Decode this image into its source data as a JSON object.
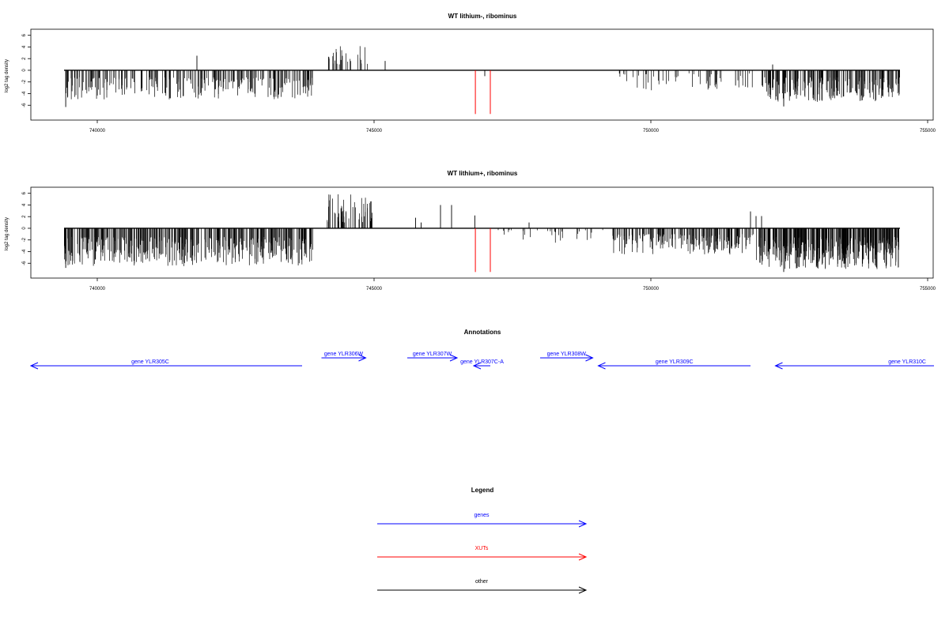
{
  "chart_data": [
    {
      "type": "bar",
      "title": "WT lithium-, ribominus",
      "ylabel": "log2 tag density",
      "xlim": [
        738800,
        755100
      ],
      "ylim": [
        -8,
        6.5
      ],
      "x_ticks": [
        "740000",
        "745000",
        "750000",
        "755000"
      ],
      "y_ticks": [
        "6",
        "4",
        "2",
        "0",
        "-2",
        "-4",
        "-6"
      ],
      "baseline": {
        "x_start": 739400,
        "x_end": 754500,
        "y": 0
      },
      "regions": [
        {
          "x_start": 739400,
          "x_end": 743900,
          "sign": -1,
          "min": 1.2,
          "max": 5.0,
          "density": 250
        },
        {
          "x_start": 744150,
          "x_end": 744900,
          "sign": 1,
          "min": 1.0,
          "max": 4.2,
          "density": 26
        },
        {
          "x_start": 749400,
          "x_end": 751900,
          "sign": -1,
          "min": 0.5,
          "max": 3.5,
          "density": 55
        },
        {
          "x_start": 752000,
          "x_end": 754500,
          "sign": -1,
          "min": 1.2,
          "max": 5.5,
          "density": 220
        }
      ],
      "spikes": [
        {
          "x": 739430,
          "y": -6.3
        },
        {
          "x": 741800,
          "y": 2.5
        },
        {
          "x": 745200,
          "y": 1.6
        },
        {
          "x": 747000,
          "y": -1.0
        },
        {
          "x": 752200,
          "y": 1.0
        },
        {
          "x": 752400,
          "y": -6.2
        }
      ],
      "xut_markers": [
        {
          "x": 746830,
          "y": -7.5
        },
        {
          "x": 747100,
          "y": -7.5
        }
      ]
    },
    {
      "type": "bar",
      "title": "WT lithium+, ribominus",
      "ylabel": "log2 tag density",
      "xlim": [
        738800,
        755100
      ],
      "ylim": [
        -8,
        6.5
      ],
      "x_ticks": [
        "740000",
        "745000",
        "750000",
        "755000"
      ],
      "y_ticks": [
        "6",
        "4",
        "2",
        "0",
        "-2",
        "-4",
        "-6"
      ],
      "baseline": {
        "x_start": 739400,
        "x_end": 754500,
        "y": 0
      },
      "regions": [
        {
          "x_start": 739400,
          "x_end": 743900,
          "sign": -1,
          "min": 1.5,
          "max": 6.5,
          "density": 420
        },
        {
          "x_start": 744150,
          "x_end": 745000,
          "sign": 1,
          "min": 1.0,
          "max": 6.0,
          "density": 55
        },
        {
          "x_start": 747200,
          "x_end": 749300,
          "sign": -1,
          "min": 0.3,
          "max": 2.5,
          "density": 30
        },
        {
          "x_start": 749300,
          "x_end": 751900,
          "sign": -1,
          "min": 1.0,
          "max": 4.5,
          "density": 190
        },
        {
          "x_start": 751900,
          "x_end": 754500,
          "sign": -1,
          "min": 1.5,
          "max": 7.0,
          "density": 380
        }
      ],
      "spikes": [
        {
          "x": 739430,
          "y": -6.8
        },
        {
          "x": 745750,
          "y": 1.8
        },
        {
          "x": 745850,
          "y": 1.0
        },
        {
          "x": 746200,
          "y": 4.0
        },
        {
          "x": 746400,
          "y": 4.0
        },
        {
          "x": 746820,
          "y": 2.2
        },
        {
          "x": 747800,
          "y": 1.0
        },
        {
          "x": 751800,
          "y": 2.9
        },
        {
          "x": 751900,
          "y": 2.1
        },
        {
          "x": 752000,
          "y": 2.1
        },
        {
          "x": 752400,
          "y": -7.5
        }
      ],
      "xut_markers": [
        {
          "x": 746830,
          "y": -7.5
        },
        {
          "x": 747100,
          "y": -7.5
        }
      ]
    }
  ],
  "annotations": {
    "title": "Annotations",
    "genes": [
      {
        "label": "gene YLR305C",
        "x_start": 738700,
        "x_end": 743700,
        "dir": "left",
        "row": 2
      },
      {
        "label": "gene YLR306W",
        "x_start": 744050,
        "x_end": 744850,
        "dir": "right",
        "row": 1
      },
      {
        "label": "gene YLR307W",
        "x_start": 745600,
        "x_end": 746500,
        "dir": "right",
        "row": 1
      },
      {
        "label": "gene YLR307C-A",
        "x_start": 746800,
        "x_end": 747100,
        "dir": "left",
        "row": 2
      },
      {
        "label": "gene YLR308W",
        "x_start": 748000,
        "x_end": 748950,
        "dir": "right",
        "row": 1
      },
      {
        "label": "gene YLR309C",
        "x_start": 749050,
        "x_end": 751800,
        "dir": "left",
        "row": 2
      },
      {
        "label": "gene YLR310C",
        "x_start": 752250,
        "x_end": 755200,
        "dir": "left",
        "row": 2
      }
    ]
  },
  "legend": {
    "title": "Legend",
    "items": [
      {
        "label": "genes",
        "color": "#0000ff"
      },
      {
        "label": "XUTs",
        "color": "#ff0000"
      },
      {
        "label": "other",
        "color": "#000000"
      }
    ]
  },
  "colors": {
    "gene": "#0000ff",
    "xut": "#ff0000",
    "signal": "#000000"
  }
}
